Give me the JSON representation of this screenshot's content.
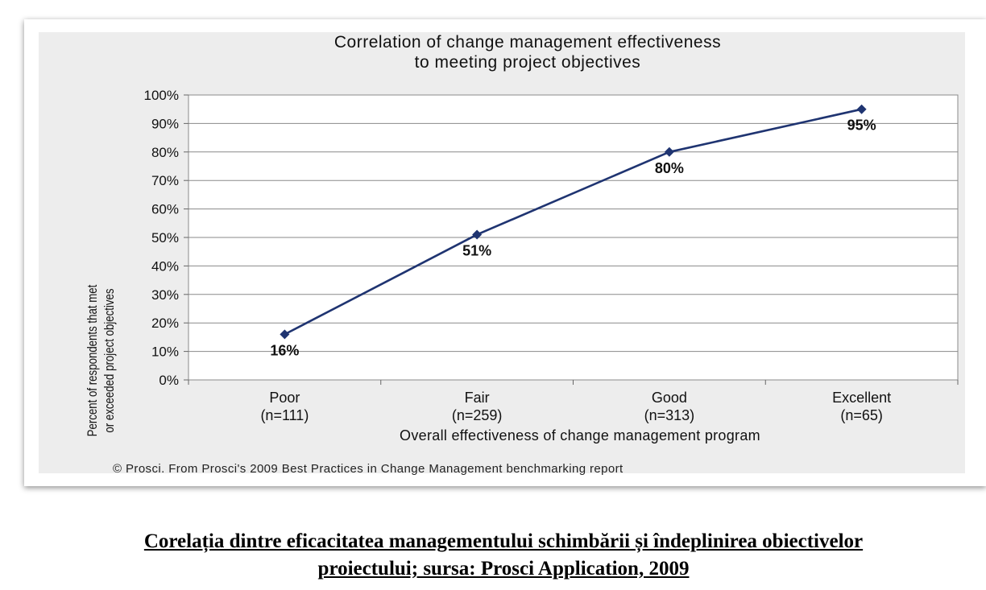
{
  "chart_data": {
    "type": "line",
    "title": [
      "Correlation of change management effectiveness",
      "to meeting project objectives"
    ],
    "xlabel": "Overall effectiveness of change management program",
    "ylabel": [
      "Percent of respondents that met",
      "or exceeded project objectives"
    ],
    "categories": [
      {
        "label": "Poor",
        "n": "(n=111)"
      },
      {
        "label": "Fair",
        "n": "(n=259)"
      },
      {
        "label": "Good",
        "n": "(n=313)"
      },
      {
        "label": "Excellent",
        "n": "(n=65)"
      }
    ],
    "values": [
      16,
      51,
      80,
      95
    ],
    "data_labels": [
      "16%",
      "51%",
      "80%",
      "95%"
    ],
    "ylim": [
      0,
      100
    ],
    "yticks": [
      "0%",
      "10%",
      "20%",
      "30%",
      "40%",
      "50%",
      "60%",
      "70%",
      "80%",
      "90%",
      "100%"
    ],
    "grid": true,
    "line_color": "#1f3471",
    "footnote": "© Prosci. From Prosci's 2009 Best Practices in Change Management benchmarking report"
  },
  "caption": {
    "line1": "Corelația dintre eficacitatea managementului schimbării și îndeplinirea obiectivelor",
    "line2": "proiectului; sursa: Prosci Application, 2009"
  }
}
